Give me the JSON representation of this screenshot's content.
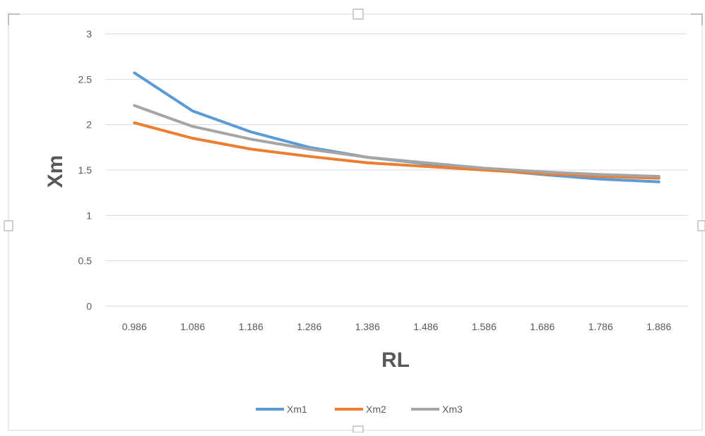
{
  "chart_data": {
    "type": "line",
    "title": "",
    "xlabel": "RL",
    "ylabel": "Xm",
    "categories": [
      "0.986",
      "1.086",
      "1.186",
      "1.286",
      "1.386",
      "1.486",
      "1.586",
      "1.686",
      "1.786",
      "1.886"
    ],
    "ylim": [
      0,
      3
    ],
    "yticks": [
      "0",
      "0.5",
      "1",
      "1.5",
      "2",
      "2.5",
      "3"
    ],
    "grid": "horizontal",
    "legend_position": "bottom",
    "series": [
      {
        "name": "Xm1",
        "color": "#5B9BD5",
        "values": [
          2.57,
          2.15,
          1.92,
          1.75,
          1.64,
          1.57,
          1.51,
          1.45,
          1.4,
          1.37
        ]
      },
      {
        "name": "Xm2",
        "color": "#ED7D31",
        "values": [
          2.02,
          1.85,
          1.73,
          1.65,
          1.58,
          1.54,
          1.5,
          1.46,
          1.43,
          1.41
        ]
      },
      {
        "name": "Xm3",
        "color": "#A5A5A5",
        "values": [
          2.21,
          1.98,
          1.84,
          1.73,
          1.64,
          1.58,
          1.52,
          1.48,
          1.45,
          1.43
        ]
      }
    ]
  }
}
